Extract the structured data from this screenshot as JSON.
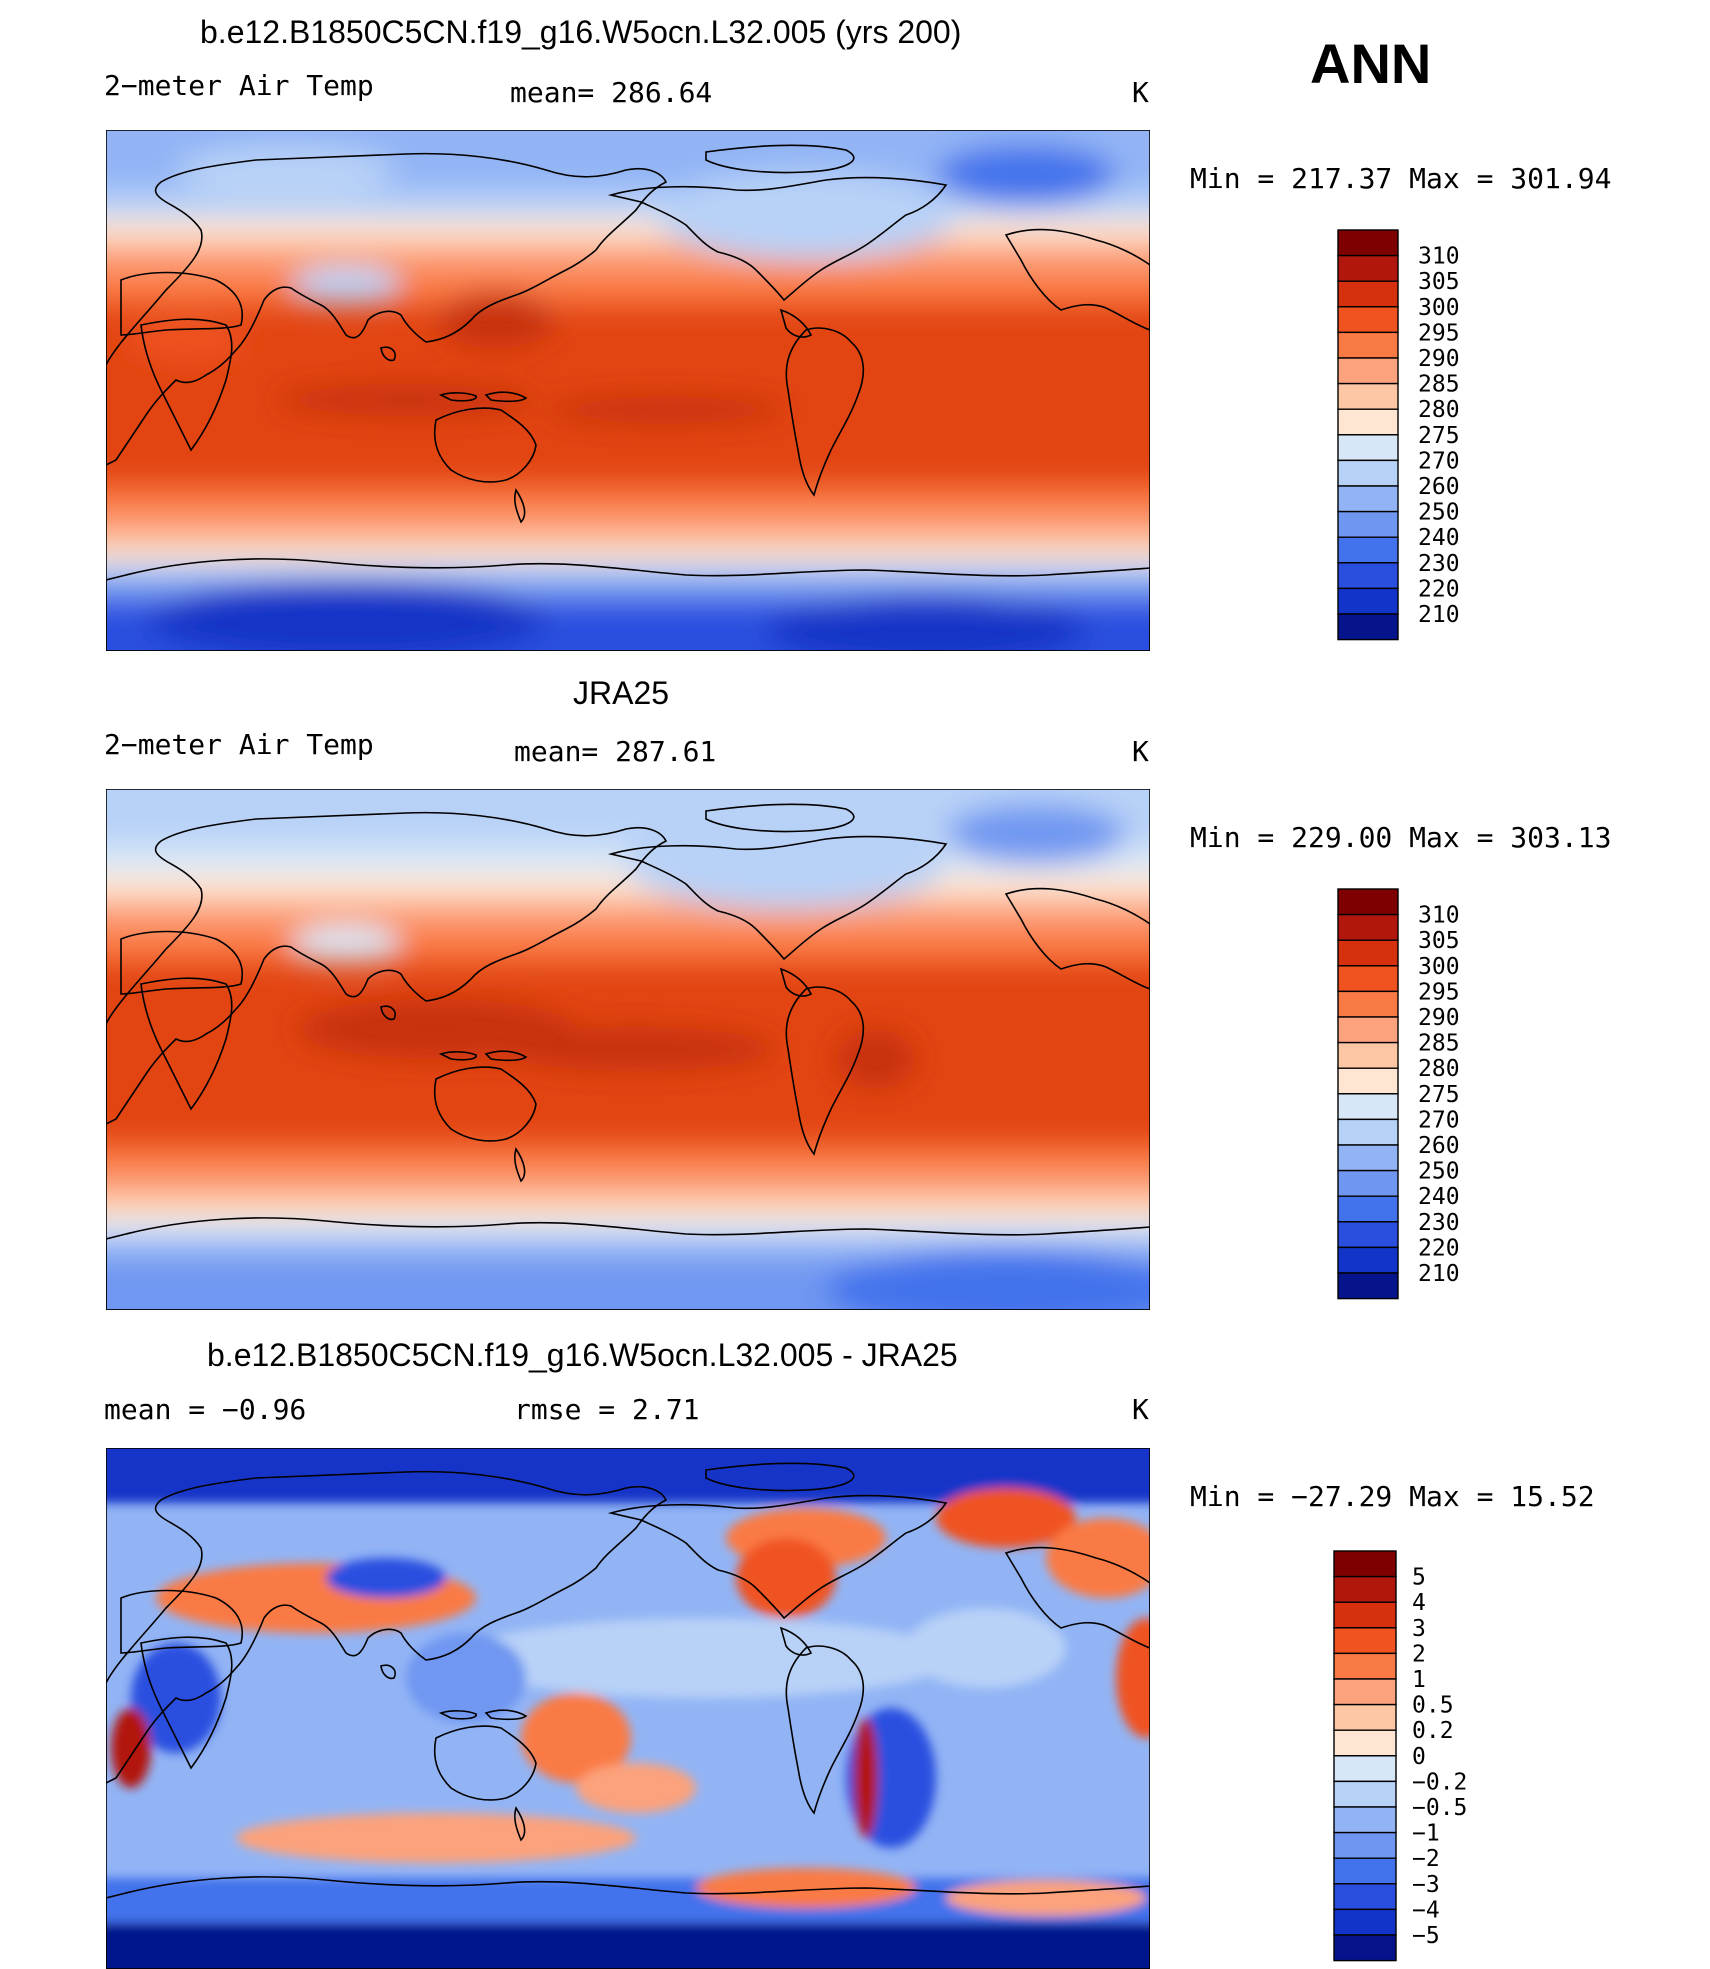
{
  "season": "ANN",
  "panels": [
    {
      "title": "b.e12.B1850C5CN.f19_g16.W5ocn.L32.005 (yrs 200)",
      "left_label": "2−meter Air Temp",
      "center_label": "mean=  286.64",
      "units": "K",
      "minmax": "Min  =  217.37  Max  =  301.94"
    },
    {
      "title": "JRA25",
      "left_label": "2−meter Air Temp",
      "center_label": "mean=  287.61",
      "units": "K",
      "minmax": "Min  =  229.00  Max  =  303.13"
    },
    {
      "title": "b.e12.B1850C5CN.f19_g16.W5ocn.L32.005 - JRA25",
      "left_label": "mean  =    −0.96",
      "center_label": "rmse  =     2.71",
      "units": "K",
      "minmax": "Min  =  −27.29  Max  =    15.52"
    }
  ],
  "colorbars": {
    "temperature": {
      "labels": [
        "310",
        "305",
        "300",
        "295",
        "290",
        "285",
        "280",
        "275",
        "270",
        "260",
        "250",
        "240",
        "230",
        "220",
        "210"
      ],
      "colors": [
        "#7f0000",
        "#b2170e",
        "#d7300e",
        "#f05320",
        "#fa7a45",
        "#fca27c",
        "#fdc6a5",
        "#fee6d2",
        "#d8e7f7",
        "#b7d1f7",
        "#92b4f5",
        "#6f97f1",
        "#4272ec",
        "#2a4fe0",
        "#1234c8",
        "#06148c"
      ]
    },
    "difference": {
      "labels": [
        "5",
        "4",
        "3",
        "2",
        "1",
        "0.5",
        "0.2",
        "0",
        "−0.2",
        "−0.5",
        "−1",
        "−2",
        "−3",
        "−4",
        "−5"
      ],
      "colors": [
        "#7f0000",
        "#b2170e",
        "#d7300e",
        "#f05320",
        "#fa7a45",
        "#fca27c",
        "#fdc6a5",
        "#fee6d2",
        "#d8e7f7",
        "#b7d1f7",
        "#92b4f5",
        "#6f97f1",
        "#4272ec",
        "#2a4fe0",
        "#1234c8",
        "#06148c"
      ]
    }
  },
  "chart_data": [
    {
      "type": "heatmap",
      "title": "b.e12.B1850C5CN.f19_g16.W5ocn.L32.005 (yrs 200)",
      "variable": "2-meter Air Temp",
      "units": "K",
      "mean": 286.64,
      "min": 217.37,
      "max": 301.94,
      "contour_levels": [
        210,
        220,
        230,
        240,
        250,
        260,
        270,
        275,
        280,
        285,
        290,
        295,
        300,
        305,
        310
      ]
    },
    {
      "type": "heatmap",
      "title": "JRA25",
      "variable": "2-meter Air Temp",
      "units": "K",
      "mean": 287.61,
      "min": 229.0,
      "max": 303.13,
      "contour_levels": [
        210,
        220,
        230,
        240,
        250,
        260,
        270,
        275,
        280,
        285,
        290,
        295,
        300,
        305,
        310
      ]
    },
    {
      "type": "heatmap",
      "title": "b.e12.B1850C5CN.f19_g16.W5ocn.L32.005 - JRA25",
      "units": "K",
      "mean": -0.96,
      "rmse": 2.71,
      "min": -27.29,
      "max": 15.52,
      "contour_levels": [
        -5,
        -4,
        -3,
        -2,
        -1,
        -0.5,
        -0.2,
        0,
        0.2,
        0.5,
        1,
        2,
        3,
        4,
        5
      ]
    }
  ]
}
